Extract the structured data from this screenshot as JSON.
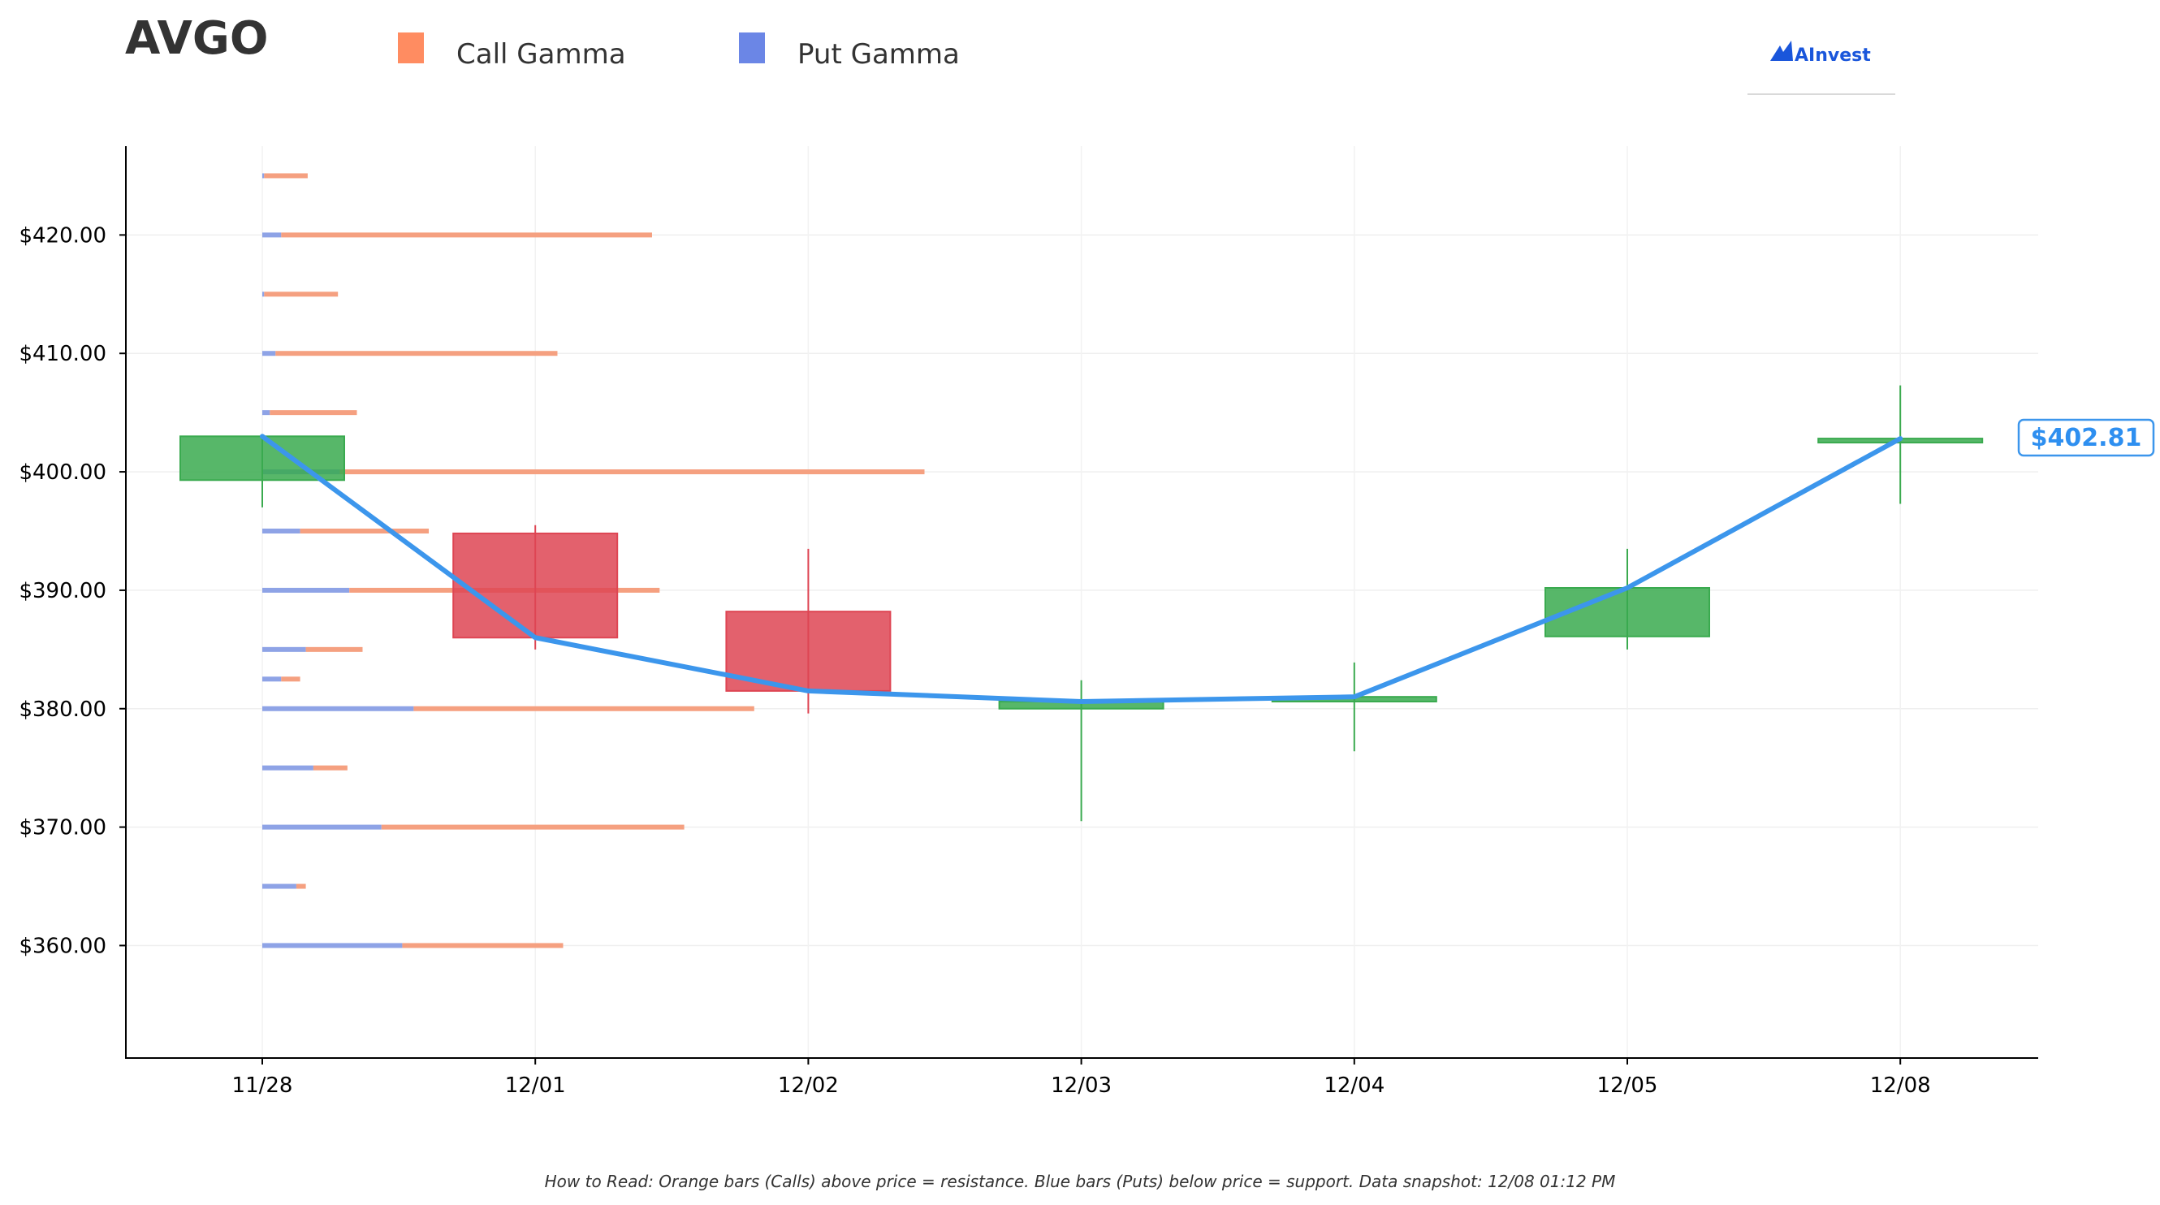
{
  "ticker": "AVGO",
  "brand": {
    "name": "AInvest",
    "color": "#1a56db"
  },
  "legend": [
    {
      "label": "Call Gamma",
      "color": "#ff8c61"
    },
    {
      "label": "Put Gamma",
      "color": "#6b86e6"
    }
  ],
  "colors": {
    "up": "#3aaa4f",
    "down": "#de4553",
    "price_line": "#3c96ec",
    "call_bar": "#f5a080",
    "put_bar": "#8ea3e6"
  },
  "footnote": "How to Read: Orange bars (Calls) above price = resistance. Blue bars (Puts) below price = support. Data snapshot: 12/08 01:12 PM",
  "chart_data": {
    "type": "candlestick",
    "title": "AVGO",
    "x_categories": [
      "11/28",
      "12/01",
      "12/02",
      "12/03",
      "12/04",
      "12/05",
      "12/08"
    ],
    "y_ticks": [
      "$360.00",
      "$370.00",
      "$380.00",
      "$390.00",
      "$400.00",
      "$410.00",
      "$420.00"
    ],
    "y_tick_values": [
      360,
      370,
      380,
      390,
      400,
      410,
      420
    ],
    "ylim": [
      350.5,
      427.5
    ],
    "grid": true,
    "last_price_label": "$402.81",
    "candles": [
      {
        "date": "11/28",
        "open": 399.3,
        "high": 403.0,
        "low": 397.0,
        "close": 403.0
      },
      {
        "date": "12/01",
        "open": 394.8,
        "high": 395.5,
        "low": 385.0,
        "close": 386.0
      },
      {
        "date": "12/02",
        "open": 388.2,
        "high": 393.5,
        "low": 379.6,
        "close": 381.5
      },
      {
        "date": "12/03",
        "open": 380.0,
        "high": 382.4,
        "low": 370.5,
        "close": 380.6
      },
      {
        "date": "12/04",
        "open": 380.6,
        "high": 383.9,
        "low": 376.4,
        "close": 381.0
      },
      {
        "date": "12/05",
        "open": 386.1,
        "high": 393.5,
        "low": 385.0,
        "close": 390.2
      },
      {
        "date": "12/08",
        "open": 402.5,
        "high": 407.3,
        "low": 397.3,
        "close": 402.81
      }
    ],
    "gamma_by_strike": [
      {
        "strike": 425.0,
        "put": 0.01,
        "call": 0.23
      },
      {
        "strike": 420.0,
        "put": 0.1,
        "call": 1.96
      },
      {
        "strike": 415.0,
        "put": 0.01,
        "call": 0.39
      },
      {
        "strike": 410.0,
        "put": 0.07,
        "call": 1.49
      },
      {
        "strike": 405.0,
        "put": 0.04,
        "call": 0.46
      },
      {
        "strike": 400.0,
        "put": 0.41,
        "call": 3.09
      },
      {
        "strike": 395.0,
        "put": 0.2,
        "call": 0.68
      },
      {
        "strike": 390.0,
        "put": 0.46,
        "call": 1.64
      },
      {
        "strike": 385.0,
        "put": 0.23,
        "call": 0.3
      },
      {
        "strike": 382.5,
        "put": 0.1,
        "call": 0.1
      },
      {
        "strike": 380.0,
        "put": 0.8,
        "call": 1.8
      },
      {
        "strike": 375.0,
        "put": 0.27,
        "call": 0.18
      },
      {
        "strike": 370.0,
        "put": 0.63,
        "call": 1.6
      },
      {
        "strike": 365.0,
        "put": 0.18,
        "call": 0.05
      },
      {
        "strike": 360.0,
        "put": 0.74,
        "call": 0.85
      }
    ]
  }
}
